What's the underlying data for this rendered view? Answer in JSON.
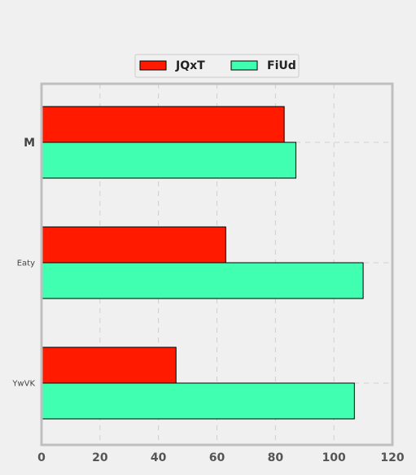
{
  "chart_data": {
    "type": "bar",
    "orientation": "horizontal",
    "categories": [
      "M",
      "Eaty",
      "YwVK"
    ],
    "series": [
      {
        "name": "JQxT",
        "values": [
          83,
          63,
          46
        ],
        "color": "#ff1a00"
      },
      {
        "name": "FiUd",
        "values": [
          87,
          110,
          107
        ],
        "color": "#40ffb0"
      }
    ],
    "xlim": [
      0,
      120
    ],
    "xticks": [
      0,
      20,
      40,
      60,
      80,
      100,
      120
    ],
    "grid": true,
    "legend_position": "top-center",
    "title": "",
    "xlabel": "",
    "ylabel": ""
  }
}
